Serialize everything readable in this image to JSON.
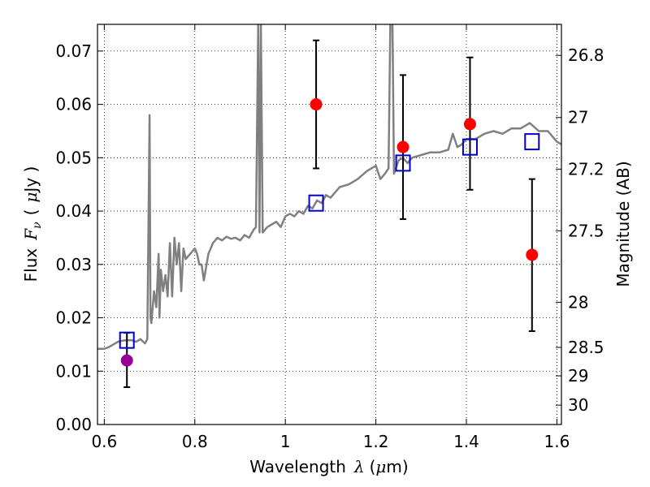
{
  "chart_data": {
    "type": "scatter",
    "xlabel": "Wavelength",
    "xlabel_symbol": "λ",
    "xlabel_unit_open": "(",
    "xlabel_unit_mu": "μ",
    "xlabel_unit_rest": "m)",
    "ylabel": "Flux",
    "ylabel_symbol": "F",
    "ylabel_subscript": "ν",
    "ylabel_unit_open": "(",
    "ylabel_unit_mu": "μ",
    "ylabel_unit_rest": "Jy )",
    "y2label": "Magnitude (AB)",
    "xlim": [
      0.585,
      1.61
    ],
    "ylim": [
      0.0,
      0.075
    ],
    "grid": true,
    "x_ticks": [
      {
        "value": 0.6,
        "label": "0.6"
      },
      {
        "value": 0.8,
        "label": "0.8"
      },
      {
        "value": 1.0,
        "label": "1"
      },
      {
        "value": 1.2,
        "label": "1.2"
      },
      {
        "value": 1.4,
        "label": "1.4"
      },
      {
        "value": 1.6,
        "label": "1.6"
      }
    ],
    "y_ticks": [
      {
        "value": 0.0,
        "label": "0.00"
      },
      {
        "value": 0.01,
        "label": "0.01"
      },
      {
        "value": 0.02,
        "label": "0.02"
      },
      {
        "value": 0.03,
        "label": "0.03"
      },
      {
        "value": 0.04,
        "label": "0.04"
      },
      {
        "value": 0.05,
        "label": "0.05"
      },
      {
        "value": 0.06,
        "label": "0.06"
      },
      {
        "value": 0.07,
        "label": "0.07"
      }
    ],
    "y2_ticks": [
      {
        "value": 26.8,
        "label": "26.8"
      },
      {
        "value": 27.0,
        "label": "27"
      },
      {
        "value": 27.2,
        "label": "27.2"
      },
      {
        "value": 27.5,
        "label": "27.5"
      },
      {
        "value": 28.0,
        "label": "28"
      },
      {
        "value": 28.5,
        "label": "28.5"
      },
      {
        "value": 29.0,
        "label": "29"
      },
      {
        "value": 30.0,
        "label": "30"
      }
    ],
    "series": [
      {
        "kind": "line",
        "color": "#808080",
        "x": [
          0.585,
          0.6,
          0.61,
          0.62,
          0.63,
          0.64,
          0.65,
          0.66,
          0.67,
          0.68,
          0.69,
          0.695,
          0.7,
          0.702,
          0.704,
          0.706,
          0.71,
          0.715,
          0.72,
          0.722,
          0.725,
          0.73,
          0.735,
          0.74,
          0.745,
          0.75,
          0.755,
          0.76,
          0.765,
          0.77,
          0.775,
          0.78,
          0.79,
          0.8,
          0.805,
          0.81,
          0.815,
          0.82,
          0.83,
          0.84,
          0.85,
          0.86,
          0.87,
          0.88,
          0.89,
          0.9,
          0.91,
          0.92,
          0.93,
          0.935,
          0.94,
          0.943,
          0.946,
          0.95,
          0.96,
          0.97,
          0.98,
          0.99,
          1.0,
          1.01,
          1.02,
          1.03,
          1.04,
          1.05,
          1.06,
          1.07,
          1.08,
          1.09,
          1.1,
          1.12,
          1.14,
          1.15,
          1.16,
          1.18,
          1.2,
          1.21,
          1.22,
          1.228,
          1.232,
          1.236,
          1.24,
          1.25,
          1.26,
          1.27,
          1.28,
          1.3,
          1.32,
          1.34,
          1.36,
          1.37,
          1.38,
          1.39,
          1.4,
          1.42,
          1.44,
          1.46,
          1.48,
          1.5,
          1.52,
          1.54,
          1.56,
          1.58,
          1.6,
          1.61
        ],
        "y": [
          0.0142,
          0.0142,
          0.0145,
          0.015,
          0.0155,
          0.0157,
          0.0158,
          0.0158,
          0.0155,
          0.016,
          0.0152,
          0.016,
          0.058,
          0.02,
          0.019,
          0.021,
          0.025,
          0.022,
          0.032,
          0.02,
          0.029,
          0.025,
          0.028,
          0.024,
          0.034,
          0.024,
          0.035,
          0.03,
          0.034,
          0.025,
          0.033,
          0.031,
          0.032,
          0.033,
          0.032,
          0.03,
          0.03,
          0.027,
          0.032,
          0.034,
          0.035,
          0.0345,
          0.0352,
          0.0348,
          0.035,
          0.0345,
          0.0355,
          0.035,
          0.0365,
          0.037,
          0.075,
          0.036,
          0.075,
          0.036,
          0.037,
          0.0375,
          0.038,
          0.037,
          0.039,
          0.0395,
          0.039,
          0.04,
          0.0395,
          0.041,
          0.0405,
          0.042,
          0.0415,
          0.043,
          0.0425,
          0.0445,
          0.045,
          0.0455,
          0.046,
          0.0475,
          0.0485,
          0.046,
          0.047,
          0.048,
          0.075,
          0.08,
          0.047,
          0.0495,
          0.05,
          0.049,
          0.05,
          0.0505,
          0.051,
          0.051,
          0.0515,
          0.0545,
          0.052,
          0.0525,
          0.0535,
          0.0535,
          0.0545,
          0.055,
          0.0545,
          0.0555,
          0.0555,
          0.0565,
          0.055,
          0.055,
          0.053,
          0.0525
        ]
      },
      {
        "kind": "squares",
        "color": "#0000cc",
        "x": [
          0.65,
          1.068,
          1.26,
          1.408,
          1.545
        ],
        "y": [
          0.0158,
          0.0415,
          0.049,
          0.052,
          0.053
        ]
      },
      {
        "kind": "points",
        "color": "#ff0000",
        "x": [
          1.068,
          1.26,
          1.408,
          1.545
        ],
        "y": [
          0.06,
          0.052,
          0.0563,
          0.0318
        ],
        "yerr_low": [
          0.048,
          0.0385,
          0.044,
          0.0175
        ],
        "yerr_high": [
          0.072,
          0.0655,
          0.0688,
          0.046
        ]
      },
      {
        "kind": "points",
        "color": "#990099",
        "x": [
          0.65
        ],
        "y": [
          0.012
        ],
        "yerr_low": [
          0.007
        ],
        "yerr_high": [
          0.0172
        ]
      }
    ]
  }
}
